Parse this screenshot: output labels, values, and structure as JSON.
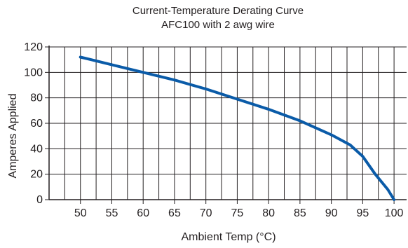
{
  "chart_data": {
    "type": "line",
    "title": "Current-Temperature Derating Curve",
    "subtitle": "AFC100 with 2 awg wire",
    "xlabel": "Ambient Temp (°C)",
    "ylabel": "Amperes Applied",
    "xlim": [
      45,
      102
    ],
    "ylim": [
      0,
      120
    ],
    "x_ticks": [
      50,
      55,
      60,
      65,
      70,
      75,
      80,
      85,
      90,
      95,
      100
    ],
    "y_ticks": [
      0,
      20,
      40,
      60,
      80,
      100,
      120
    ],
    "grid": true,
    "line_color": "#0a5ba8",
    "series": [
      {
        "x": [
          50,
          55,
          60,
          65,
          70,
          75,
          80,
          85,
          90,
          93,
          95,
          97,
          99,
          100
        ],
        "values": [
          112,
          106,
          100,
          94,
          87,
          79,
          71,
          62,
          51,
          43,
          34,
          20,
          8,
          0
        ]
      }
    ]
  }
}
